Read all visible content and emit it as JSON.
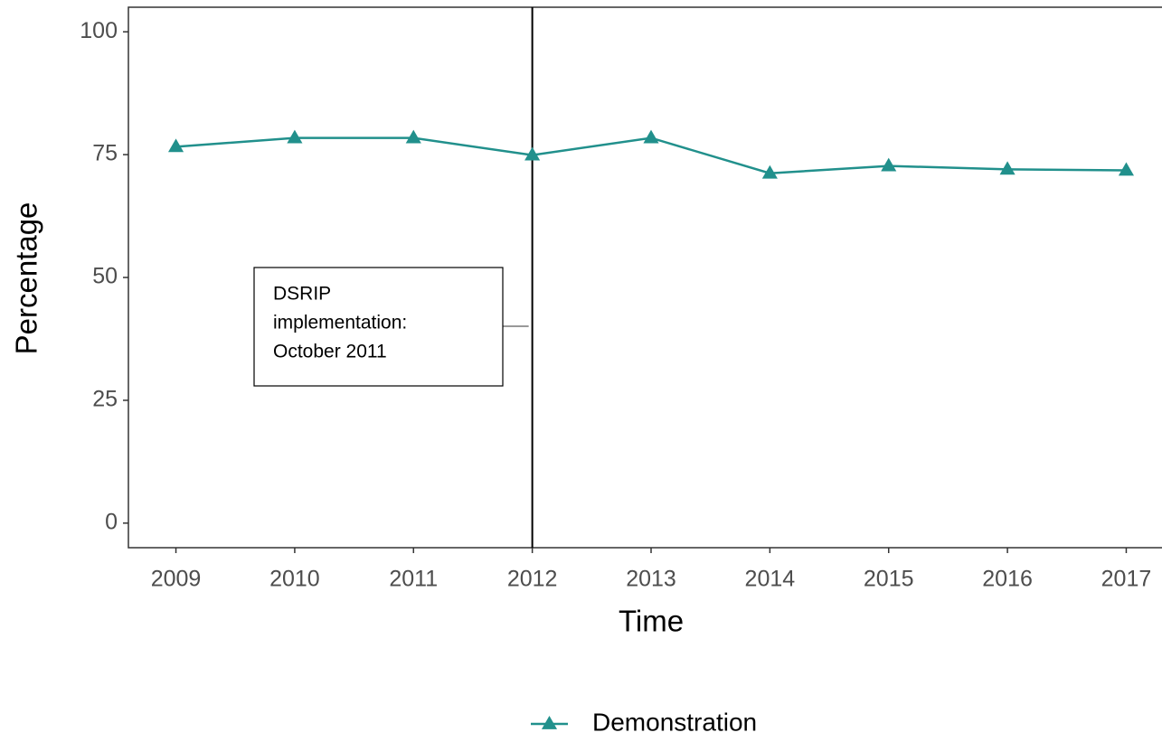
{
  "chart_data": {
    "type": "line",
    "x_label": "Time",
    "y_label": "Percentage",
    "x": [
      2009,
      2010,
      2011,
      2012,
      2013,
      2014,
      2015,
      2016,
      2017
    ],
    "series": [
      {
        "name": "Demonstration",
        "color": "#21908c",
        "values": [
          76.6,
          78.4,
          78.4,
          74.9,
          78.4,
          71.2,
          72.7,
          72.0,
          71.8
        ]
      }
    ],
    "xlim": [
      2008.6,
      2017.4
    ],
    "xticks": [
      2009,
      2010,
      2011,
      2012,
      2013,
      2014,
      2015,
      2016,
      2017
    ],
    "ylim": [
      -5,
      105
    ],
    "yticks": [
      0,
      25,
      50,
      75,
      100
    ],
    "grid": false,
    "legend": "bottom",
    "vline": 2012,
    "annotation": [
      "DSRIP",
      "implementation:",
      "October 2011"
    ]
  }
}
